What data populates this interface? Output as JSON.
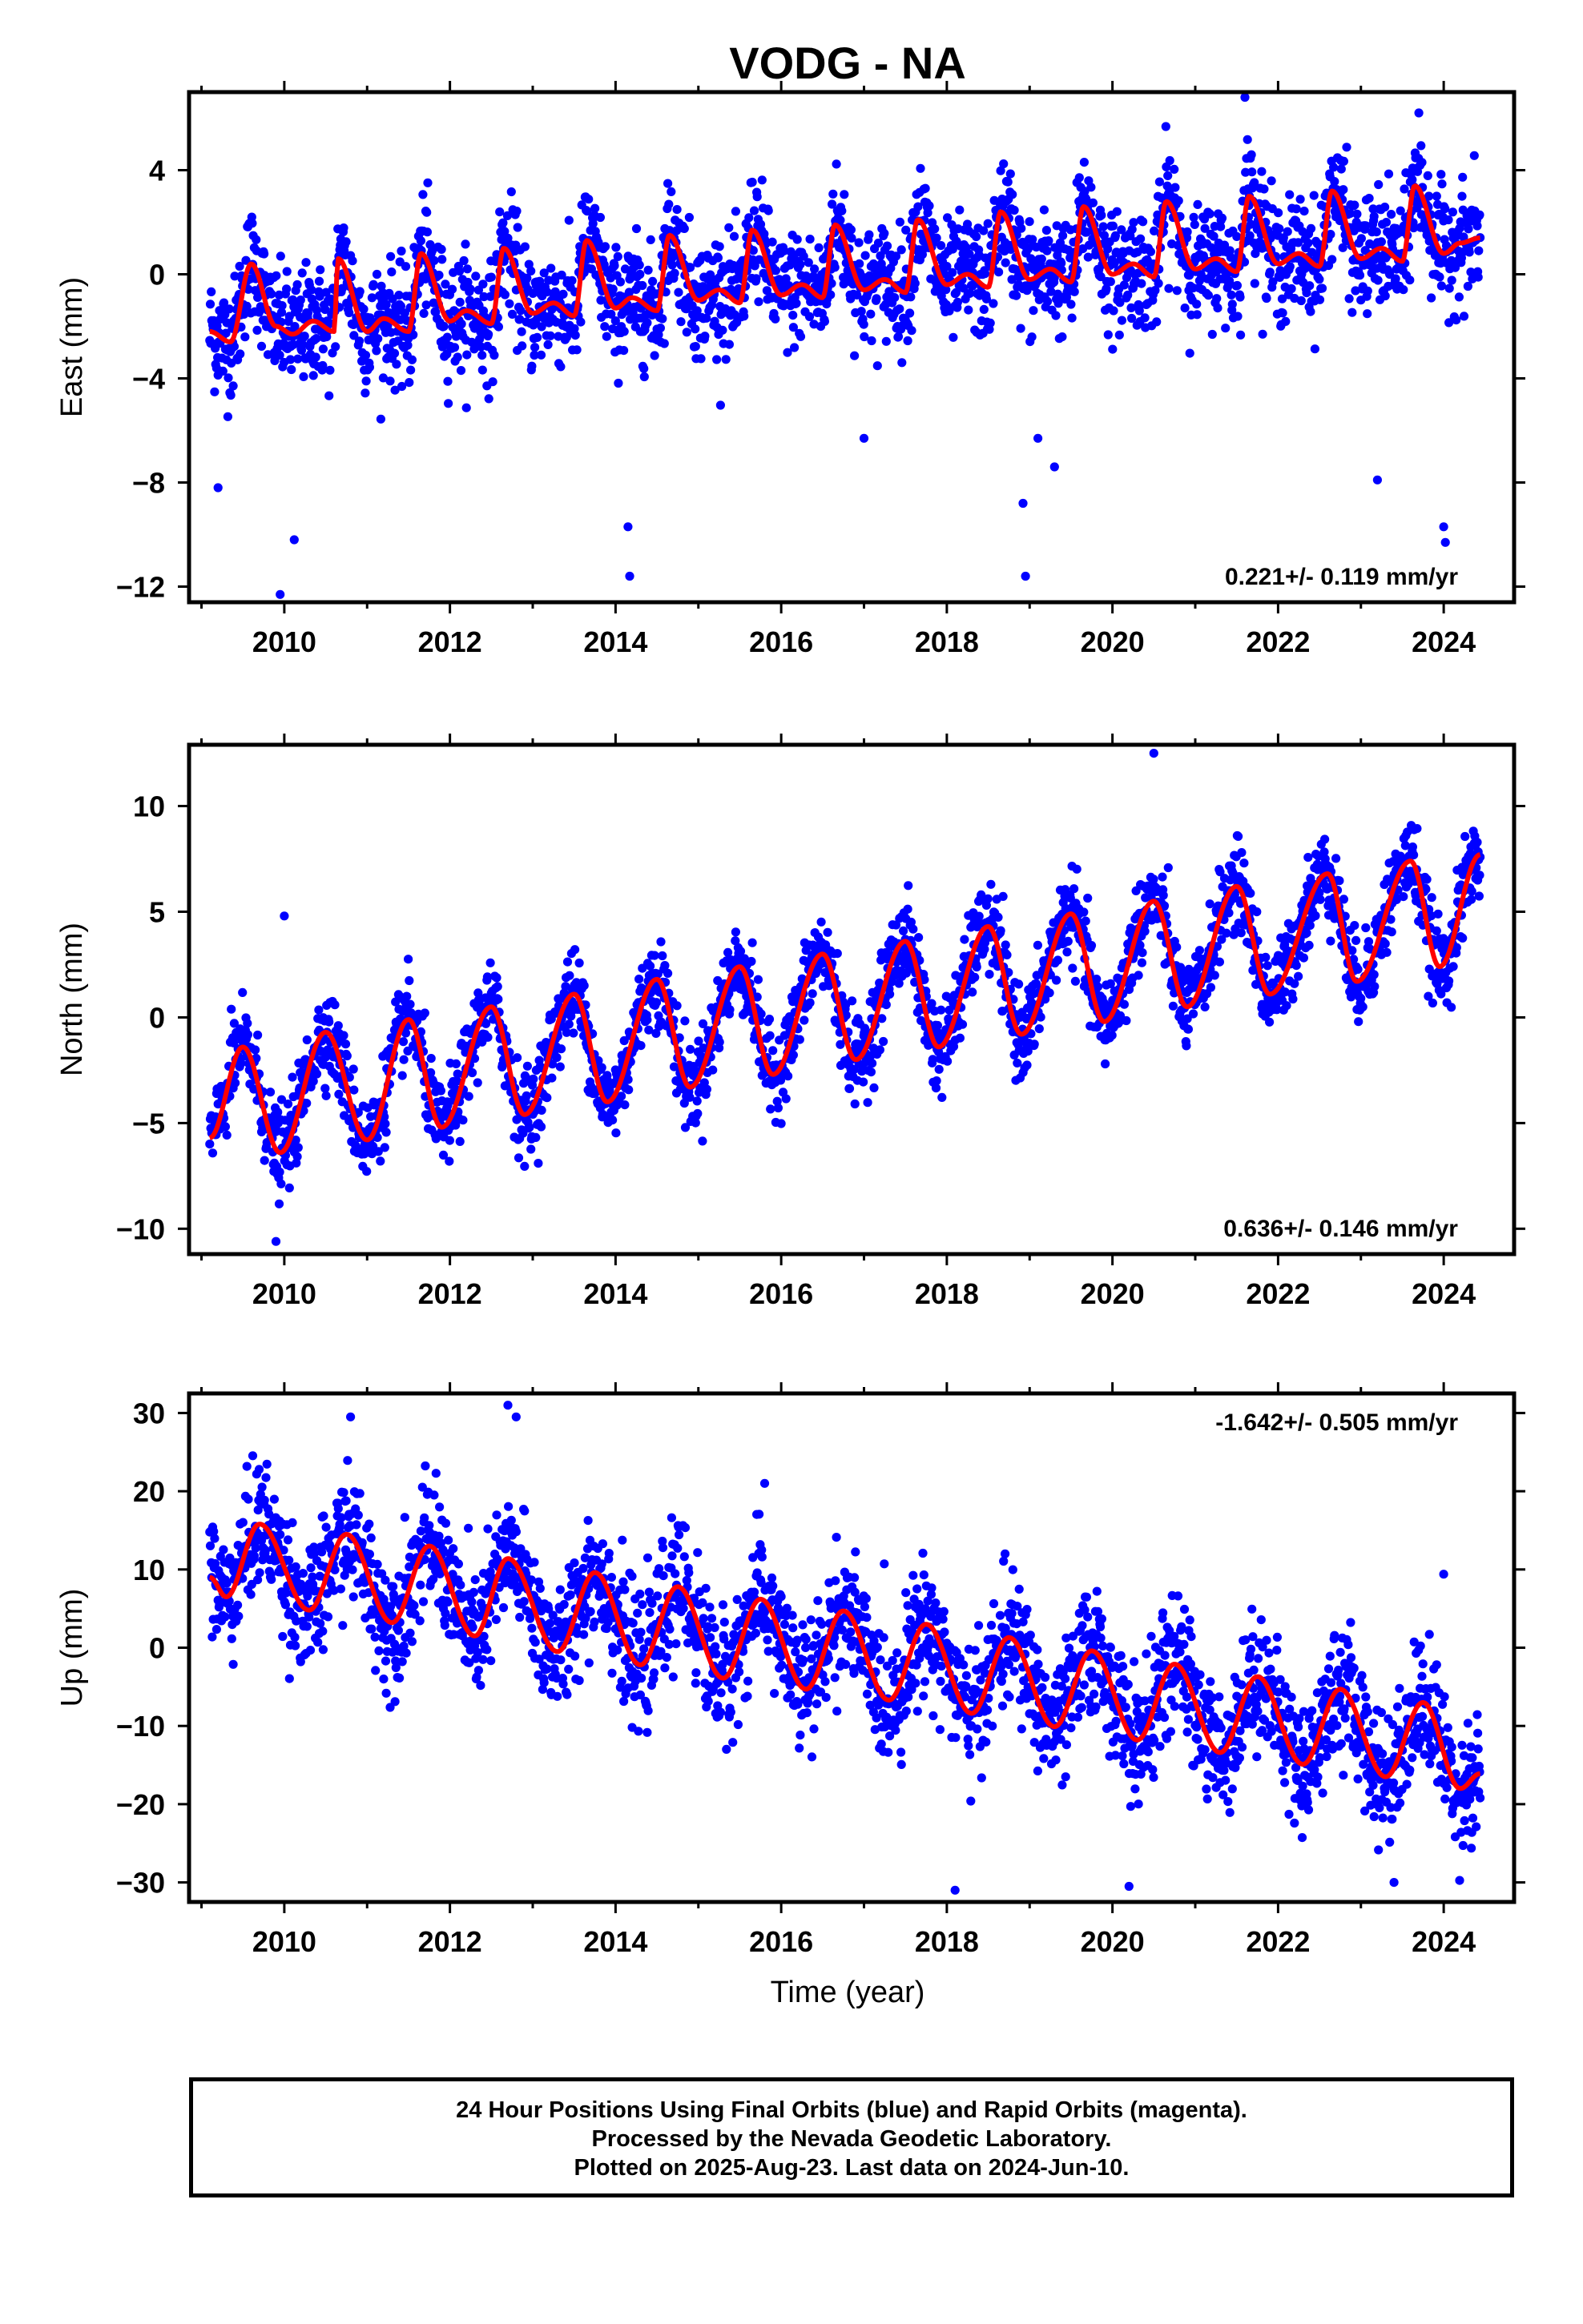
{
  "figure": {
    "title": "VODG - NA",
    "xlabel": "Time (year)",
    "notes": [
      "24 Hour Positions Using Final Orbits (blue) and Rapid Orbits (magenta).",
      "Processed by the Nevada Geodetic Laboratory.",
      "Plotted on 2025-Aug-23. Last data on 2024-Jun-10."
    ],
    "colors": {
      "final_orbits": "#0000ff",
      "model_fit": "#ff0000",
      "axis": "#000000"
    }
  },
  "chart_data": [
    {
      "type": "scatter",
      "name": "east",
      "ylabel": "East (mm)",
      "xlim": [
        2008.85,
        2024.85
      ],
      "ylim": [
        -12.6,
        7.0
      ],
      "xticks": [
        2010,
        2012,
        2014,
        2016,
        2018,
        2020,
        2022,
        2024
      ],
      "yticks": [
        -12,
        -8,
        -4,
        0,
        4
      ],
      "ytick_labels": [
        "−12",
        "−8",
        "−4",
        "0",
        "4"
      ],
      "rate_label": "0.221+/- 0.119 mm/yr",
      "rate_label_position": "bottom-right",
      "data_range": [
        2009.1,
        2024.44
      ],
      "trend": {
        "t0": 2016.8,
        "offset": 0.2,
        "rate": 0.221
      },
      "seasonal": {
        "annual": 1.7,
        "annual_peak": 0.65,
        "semiannual": 0.6,
        "semiannual_peak": 0.0
      },
      "trend_steps": [
        {
          "t": 2017.5,
          "dy": 1.0
        },
        {
          "t": 2020.4,
          "dy": 0.5
        }
      ],
      "scatter_sd": 1.1,
      "outliers": [
        [
          2009.2,
          -8.2
        ],
        [
          2009.95,
          -12.3
        ],
        [
          2010.12,
          -10.2
        ],
        [
          2014.15,
          -9.7
        ],
        [
          2014.17,
          -11.6
        ],
        [
          2018.95,
          -11.6
        ],
        [
          2018.92,
          -8.8
        ],
        [
          2019.1,
          -6.3
        ],
        [
          2019.3,
          -7.4
        ],
        [
          2023.2,
          -7.9
        ],
        [
          2024.0,
          -9.7
        ],
        [
          2024.02,
          -10.3
        ],
        [
          2021.6,
          6.8
        ],
        [
          2023.7,
          6.2
        ],
        [
          2017.0,
          -6.3
        ]
      ],
      "fit": [
        [
          2009.1,
          -2.2
        ],
        [
          2009.35,
          -2.6
        ],
        [
          2009.6,
          0.4
        ],
        [
          2009.9,
          -2.0
        ],
        [
          2010.1,
          -2.3
        ],
        [
          2010.35,
          -1.8
        ],
        [
          2010.6,
          -2.2
        ],
        [
          2010.65,
          0.6
        ],
        [
          2011.0,
          -2.2
        ],
        [
          2011.2,
          -1.7
        ],
        [
          2011.5,
          -2.2
        ],
        [
          2011.65,
          0.8
        ],
        [
          2012.0,
          -1.8
        ],
        [
          2012.2,
          -1.4
        ],
        [
          2012.5,
          -1.9
        ],
        [
          2012.65,
          1.0
        ],
        [
          2013.0,
          -1.5
        ],
        [
          2013.25,
          -1.1
        ],
        [
          2013.5,
          -1.6
        ],
        [
          2013.65,
          1.3
        ],
        [
          2014.0,
          -1.3
        ],
        [
          2014.2,
          -0.9
        ],
        [
          2014.5,
          -1.4
        ],
        [
          2014.65,
          1.5
        ],
        [
          2015.0,
          -1.0
        ],
        [
          2015.25,
          -0.6
        ],
        [
          2015.5,
          -1.1
        ],
        [
          2015.65,
          1.7
        ],
        [
          2016.0,
          -0.8
        ],
        [
          2016.25,
          -0.4
        ],
        [
          2016.5,
          -0.9
        ],
        [
          2016.65,
          1.9
        ],
        [
          2017.0,
          -0.6
        ],
        [
          2017.25,
          -0.2
        ],
        [
          2017.5,
          -0.7
        ],
        [
          2017.65,
          2.1
        ],
        [
          2018.0,
          -0.4
        ],
        [
          2018.25,
          0.0
        ],
        [
          2018.5,
          -0.5
        ],
        [
          2018.65,
          2.4
        ],
        [
          2019.0,
          -0.2
        ],
        [
          2019.25,
          0.2
        ],
        [
          2019.5,
          -0.3
        ],
        [
          2019.65,
          2.6
        ],
        [
          2020.0,
          0.0
        ],
        [
          2020.25,
          0.4
        ],
        [
          2020.5,
          -0.1
        ],
        [
          2020.65,
          2.8
        ],
        [
          2021.0,
          0.2
        ],
        [
          2021.25,
          0.6
        ],
        [
          2021.5,
          0.1
        ],
        [
          2021.65,
          3.0
        ],
        [
          2022.0,
          0.4
        ],
        [
          2022.25,
          0.8
        ],
        [
          2022.5,
          0.3
        ],
        [
          2022.65,
          3.2
        ],
        [
          2023.0,
          0.6
        ],
        [
          2023.25,
          1.0
        ],
        [
          2023.5,
          0.5
        ],
        [
          2023.65,
          3.4
        ],
        [
          2024.0,
          0.8
        ],
        [
          2024.2,
          1.2
        ],
        [
          2024.44,
          1.4
        ]
      ]
    },
    {
      "type": "scatter",
      "name": "north",
      "ylabel": "North (mm)",
      "xlim": [
        2008.85,
        2024.85
      ],
      "ylim": [
        -11.2,
        12.9
      ],
      "xticks": [
        2010,
        2012,
        2014,
        2016,
        2018,
        2020,
        2022,
        2024
      ],
      "yticks": [
        -10,
        -5,
        0,
        5,
        10
      ],
      "ytick_labels": [
        "−10",
        "−5",
        "0",
        "5",
        "10"
      ],
      "rate_label": "0.636+/- 0.146 mm/yr",
      "rate_label_position": "bottom-right",
      "data_range": [
        2009.1,
        2024.44
      ],
      "trend": {
        "t0": 2016.8,
        "offset": 0.0,
        "rate": 0.636
      },
      "seasonal": {
        "annual": 3.0,
        "annual_peak": 0.5,
        "semiannual": 0.8,
        "semiannual_peak": 0.25
      },
      "trend_steps": [],
      "scatter_sd": 1.0,
      "outliers": [
        [
          2010.0,
          4.8
        ],
        [
          2020.5,
          12.5
        ],
        [
          2009.9,
          -10.6
        ]
      ],
      "fit": [
        [
          2009.1,
          -5.7
        ],
        [
          2009.5,
          -1.4
        ],
        [
          2009.95,
          -6.4
        ],
        [
          2010.5,
          -0.7
        ],
        [
          2011.0,
          -5.8
        ],
        [
          2011.5,
          -0.1
        ],
        [
          2011.9,
          -5.2
        ],
        [
          2012.5,
          0.5
        ],
        [
          2012.9,
          -4.6
        ],
        [
          2013.5,
          1.1
        ],
        [
          2013.9,
          -4.0
        ],
        [
          2014.5,
          1.8
        ],
        [
          2014.9,
          -3.3
        ],
        [
          2015.5,
          2.4
        ],
        [
          2015.9,
          -2.7
        ],
        [
          2016.5,
          3.0
        ],
        [
          2016.9,
          -2.0
        ],
        [
          2017.5,
          3.6
        ],
        [
          2017.9,
          -1.4
        ],
        [
          2018.5,
          4.3
        ],
        [
          2018.9,
          -0.8
        ],
        [
          2019.5,
          4.9
        ],
        [
          2019.9,
          -0.2
        ],
        [
          2020.5,
          5.5
        ],
        [
          2020.9,
          0.5
        ],
        [
          2021.5,
          6.2
        ],
        [
          2021.9,
          1.1
        ],
        [
          2022.6,
          6.8
        ],
        [
          2022.95,
          1.7
        ],
        [
          2023.6,
          7.4
        ],
        [
          2023.95,
          2.4
        ],
        [
          2024.44,
          7.7
        ]
      ]
    },
    {
      "type": "scatter",
      "name": "up",
      "ylabel": "Up (mm)",
      "xlim": [
        2008.85,
        2024.85
      ],
      "ylim": [
        -32.5,
        32.5
      ],
      "xticks": [
        2010,
        2012,
        2014,
        2016,
        2018,
        2020,
        2022,
        2024
      ],
      "yticks": [
        -30,
        -20,
        -10,
        0,
        10,
        20,
        30
      ],
      "ytick_labels": [
        "−30",
        "−20",
        "−10",
        "0",
        "10",
        "20",
        "30"
      ],
      "rate_label": "-1.642+/- 0.505 mm/yr",
      "rate_label_position": "top-right",
      "data_range": [
        2009.1,
        2024.44
      ],
      "trend": {
        "t0": 2016.8,
        "offset": -1.0,
        "rate": -1.642
      },
      "seasonal": {
        "annual": 5.0,
        "annual_peak": 0.7,
        "semiannual": 1.0,
        "semiannual_peak": 0.2
      },
      "trend_steps": [],
      "scatter_sd": 4.0,
      "outliers": [
        [
          2012.7,
          31.0
        ],
        [
          2012.8,
          29.5
        ],
        [
          2010.8,
          29.5
        ],
        [
          2018.1,
          -31.0
        ],
        [
          2023.4,
          -30.0
        ],
        [
          2020.2,
          -30.5
        ],
        [
          2015.8,
          21.0
        ],
        [
          2024.0,
          9.4
        ],
        [
          2014.2,
          -10.2
        ],
        [
          2011.2,
          -4.0
        ]
      ],
      "fit": [
        [
          2009.1,
          9.0
        ],
        [
          2009.3,
          6.5
        ],
        [
          2009.7,
          15.8
        ],
        [
          2010.3,
          4.8
        ],
        [
          2010.75,
          14.5
        ],
        [
          2011.3,
          3.2
        ],
        [
          2011.75,
          13.0
        ],
        [
          2012.3,
          1.5
        ],
        [
          2012.7,
          11.4
        ],
        [
          2013.3,
          -0.5
        ],
        [
          2013.75,
          9.6
        ],
        [
          2014.3,
          -2.2
        ],
        [
          2014.75,
          7.8
        ],
        [
          2015.3,
          -3.9
        ],
        [
          2015.75,
          6.2
        ],
        [
          2016.3,
          -5.3
        ],
        [
          2016.75,
          4.7
        ],
        [
          2017.3,
          -6.7
        ],
        [
          2017.75,
          3.0
        ],
        [
          2018.3,
          -8.4
        ],
        [
          2018.75,
          1.3
        ],
        [
          2019.3,
          -10.1
        ],
        [
          2019.75,
          -0.4
        ],
        [
          2020.3,
          -11.8
        ],
        [
          2020.75,
          -2.1
        ],
        [
          2021.3,
          -13.4
        ],
        [
          2021.75,
          -3.7
        ],
        [
          2022.3,
          -14.9
        ],
        [
          2022.75,
          -5.3
        ],
        [
          2023.3,
          -16.5
        ],
        [
          2023.75,
          -7.0
        ],
        [
          2024.2,
          -18.0
        ],
        [
          2024.44,
          -16.1
        ]
      ]
    }
  ]
}
